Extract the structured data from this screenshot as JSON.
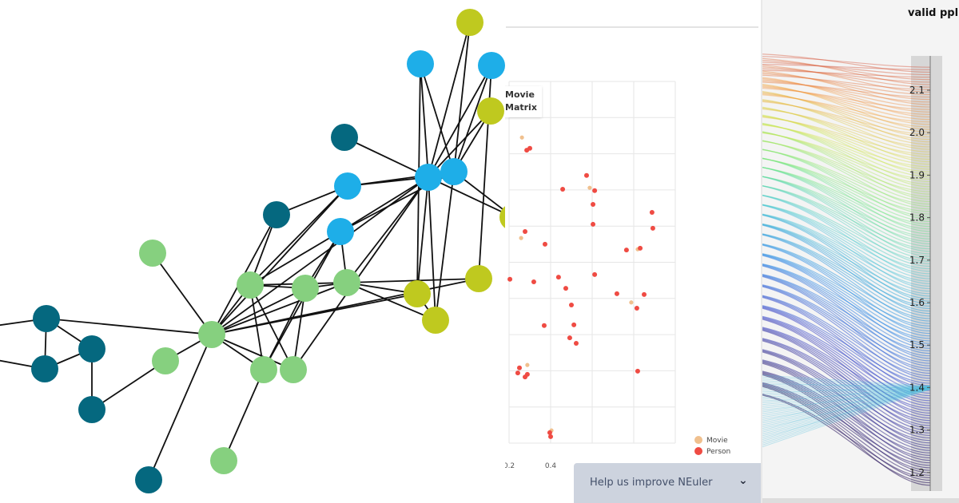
{
  "network": {
    "group_colors": {
      "teal": "#05687f",
      "green": "#86d07f",
      "blue": "#1eaee8",
      "lime": "#bfc91f"
    },
    "edge_color": "#111111"
  },
  "scatter_panel": {
    "label_lines": [
      "Movie",
      "Matrix"
    ],
    "help_banner": "Help us improve NEuler",
    "help_chevron_icon": "chevron-down-icon"
  },
  "parallel_panel": {
    "axis_title": "valid ppl"
  },
  "chart_data": [
    {
      "type": "scatter",
      "x_ticks": [
        "0.2",
        "0.4"
      ],
      "x_grid": [
        0.2,
        0.4,
        0.6,
        0.8,
        1.0
      ],
      "xlim": [
        0.2,
        1.0
      ],
      "ylim": [
        0,
        10
      ],
      "grid": true,
      "legend_placement": "bottom-right",
      "series": [
        {
          "name": "Movie",
          "color": "#f0c08e",
          "points": [
            [
              0.262,
              8.45
            ],
            [
              0.588,
              7.06
            ],
            [
              0.258,
              5.67
            ],
            [
              0.819,
              5.36
            ],
            [
              0.788,
              3.89
            ],
            [
              0.288,
              2.16
            ],
            [
              0.404,
              0.35
            ]
          ]
        },
        {
          "name": "Person",
          "color": "#ef4b43",
          "points": [
            [
              0.285,
              8.1
            ],
            [
              0.3,
              8.15
            ],
            [
              0.573,
              7.4
            ],
            [
              0.458,
              7.02
            ],
            [
              0.612,
              6.98
            ],
            [
              0.604,
              6.6
            ],
            [
              0.888,
              6.38
            ],
            [
              0.892,
              5.94
            ],
            [
              0.604,
              6.05
            ],
            [
              0.277,
              5.85
            ],
            [
              0.373,
              5.5
            ],
            [
              0.765,
              5.34
            ],
            [
              0.831,
              5.39
            ],
            [
              0.204,
              4.53
            ],
            [
              0.319,
              4.46
            ],
            [
              0.438,
              4.59
            ],
            [
              0.612,
              4.66
            ],
            [
              0.473,
              4.28
            ],
            [
              0.719,
              4.13
            ],
            [
              0.85,
              4.11
            ],
            [
              0.815,
              3.73
            ],
            [
              0.5,
              3.82
            ],
            [
              0.369,
              3.25
            ],
            [
              0.512,
              3.27
            ],
            [
              0.492,
              2.91
            ],
            [
              0.523,
              2.76
            ],
            [
              0.25,
              2.08
            ],
            [
              0.242,
              1.94
            ],
            [
              0.277,
              1.83
            ],
            [
              0.288,
              1.9
            ],
            [
              0.819,
              1.99
            ],
            [
              0.396,
              0.29
            ],
            [
              0.4,
              0.18
            ]
          ]
        }
      ]
    },
    {
      "type": "line",
      "title": "valid ppl",
      "ylim": [
        1.16,
        2.19
      ],
      "y_ticks": [
        "2.1",
        "2.0",
        "1.9",
        "1.8",
        "1.7",
        "1.6",
        "1.5",
        "1.4",
        "1.3",
        "1.2"
      ],
      "colormap": "rainbow (purple low → red high)"
    }
  ]
}
